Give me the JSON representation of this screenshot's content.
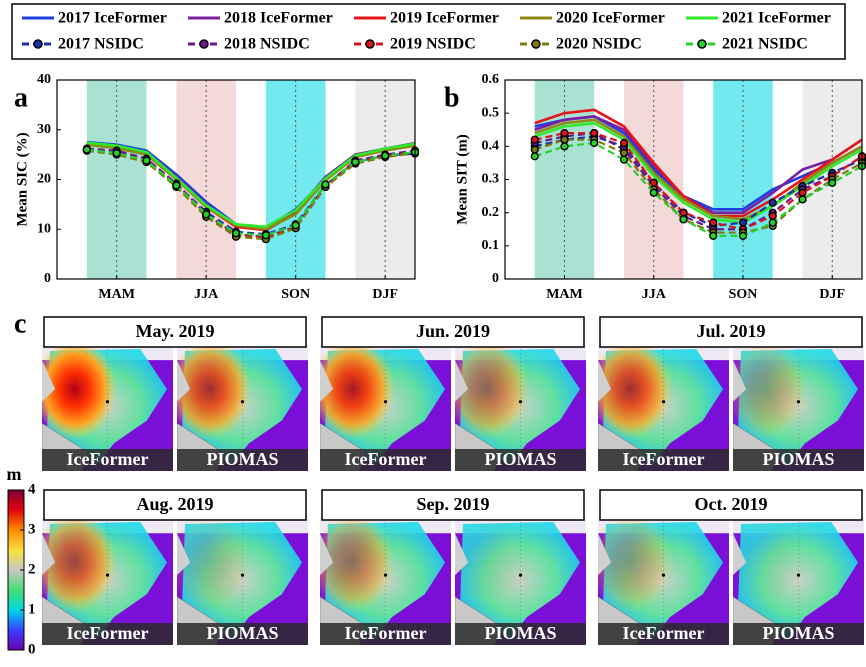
{
  "panel_labels": [
    "a",
    "b",
    "c"
  ],
  "legend": [
    {
      "name": "2017 IceFormer",
      "color": "#1f3fe0",
      "dashed": false
    },
    {
      "name": "2018 IceFormer",
      "color": "#7a1fa0",
      "dashed": false
    },
    {
      "name": "2019 IceFormer",
      "color": "#e8141c",
      "dashed": false
    },
    {
      "name": "2020 IceFormer",
      "color": "#8c8a10",
      "dashed": false
    },
    {
      "name": "2021 IceFormer",
      "color": "#2ee82e",
      "dashed": false
    },
    {
      "name": "2017 NSIDC",
      "color": "#1a2fb0",
      "dashed": true
    },
    {
      "name": "2018 NSIDC",
      "color": "#6a1a8c",
      "dashed": true
    },
    {
      "name": "2019 NSIDC",
      "color": "#d8141c",
      "dashed": true
    },
    {
      "name": "2020 NSIDC",
      "color": "#7c7a10",
      "dashed": true
    },
    {
      "name": "2021 NSIDC",
      "color": "#28d028",
      "dashed": true
    }
  ],
  "chart_data": [
    {
      "type": "line",
      "ylabel": "Mean SIC (%)",
      "x": [
        1,
        2,
        3,
        4,
        5,
        6,
        7,
        8,
        9,
        10,
        11,
        12
      ],
      "xlim": [
        0,
        12
      ],
      "xticks": [
        {
          "value": 2,
          "label": "MAM"
        },
        {
          "value": 5,
          "label": "JJA"
        },
        {
          "value": 8,
          "label": "SON"
        },
        {
          "value": 11,
          "label": "DJF"
        }
      ],
      "ylim": [
        0,
        40
      ],
      "yticks": [
        0,
        10,
        20,
        30,
        40
      ],
      "grid": "x",
      "series": [
        {
          "values": [
            27.5,
            27,
            25.8,
            21,
            15.5,
            11,
            10.2,
            14,
            20,
            24.5,
            26,
            27
          ]
        },
        {
          "values": [
            27.3,
            26.8,
            25.5,
            20.5,
            15,
            10.5,
            10,
            13.5,
            20.5,
            25,
            26.2,
            27.3
          ]
        },
        {
          "values": [
            27.2,
            26.5,
            25.2,
            20.2,
            14.5,
            10.5,
            9.8,
            13.2,
            20,
            24.8,
            26,
            27
          ]
        },
        {
          "values": [
            27,
            26.3,
            25,
            20,
            14.5,
            10.8,
            10,
            13,
            19.8,
            24.5,
            25.8,
            26.8
          ]
        },
        {
          "values": [
            27.4,
            26.8,
            25.5,
            20.3,
            14.8,
            11,
            10.5,
            13.8,
            20.2,
            24.8,
            26.2,
            27.2
          ]
        },
        {
          "values": [
            26,
            25.5,
            24,
            19,
            13.5,
            9.5,
            9,
            11,
            19,
            23.5,
            24.8,
            25.2
          ]
        },
        {
          "values": [
            26.2,
            25.8,
            24.2,
            19.2,
            13,
            9,
            8.5,
            10.5,
            18.8,
            23.8,
            25,
            25.8
          ]
        },
        {
          "values": [
            25.8,
            25.2,
            23.8,
            18.8,
            12.8,
            8.8,
            8.2,
            10.3,
            18.5,
            23.5,
            24.6,
            25.5
          ]
        },
        {
          "values": [
            25.8,
            25,
            23.5,
            18.5,
            12.5,
            8.5,
            8,
            10.2,
            18.5,
            23.2,
            24.5,
            25.3
          ]
        },
        {
          "values": [
            26,
            25.3,
            23.8,
            18.8,
            13,
            9.2,
            8.8,
            10.8,
            19,
            23.5,
            24.8,
            25.5
          ]
        }
      ]
    },
    {
      "type": "line",
      "ylabel": "Mean SIT (m)",
      "x": [
        1,
        2,
        3,
        4,
        5,
        6,
        7,
        8,
        9,
        10,
        11,
        12
      ],
      "xlim": [
        0,
        12
      ],
      "xticks": [
        {
          "value": 2,
          "label": "MAM"
        },
        {
          "value": 5,
          "label": "JJA"
        },
        {
          "value": 8,
          "label": "SON"
        },
        {
          "value": 11,
          "label": "DJF"
        }
      ],
      "ylim": [
        0,
        0.6
      ],
      "yticks": [
        0,
        0.1,
        0.2,
        0.3,
        0.4,
        0.5,
        0.6
      ],
      "grid": "x",
      "series": [
        {
          "values": [
            0.46,
            0.48,
            0.49,
            0.44,
            0.33,
            0.25,
            0.21,
            0.21,
            0.27,
            0.31,
            0.35,
            0.4
          ]
        },
        {
          "values": [
            0.45,
            0.48,
            0.49,
            0.45,
            0.34,
            0.25,
            0.2,
            0.2,
            0.26,
            0.33,
            0.36,
            0.42
          ]
        },
        {
          "values": [
            0.47,
            0.5,
            0.51,
            0.46,
            0.35,
            0.25,
            0.19,
            0.19,
            0.24,
            0.3,
            0.36,
            0.42
          ]
        },
        {
          "values": [
            0.44,
            0.47,
            0.48,
            0.43,
            0.32,
            0.24,
            0.19,
            0.18,
            0.22,
            0.29,
            0.35,
            0.4
          ]
        },
        {
          "values": [
            0.43,
            0.46,
            0.47,
            0.42,
            0.31,
            0.23,
            0.18,
            0.17,
            0.22,
            0.28,
            0.34,
            0.39
          ]
        },
        {
          "values": [
            0.4,
            0.42,
            0.43,
            0.4,
            0.29,
            0.2,
            0.16,
            0.17,
            0.23,
            0.28,
            0.32,
            0.36
          ]
        },
        {
          "values": [
            0.41,
            0.43,
            0.44,
            0.39,
            0.28,
            0.19,
            0.15,
            0.15,
            0.2,
            0.27,
            0.31,
            0.37
          ]
        },
        {
          "values": [
            0.42,
            0.44,
            0.44,
            0.41,
            0.29,
            0.2,
            0.17,
            0.15,
            0.19,
            0.26,
            0.31,
            0.37
          ]
        },
        {
          "values": [
            0.39,
            0.42,
            0.42,
            0.38,
            0.27,
            0.18,
            0.14,
            0.14,
            0.16,
            0.24,
            0.3,
            0.35
          ]
        },
        {
          "values": [
            0.37,
            0.4,
            0.41,
            0.36,
            0.26,
            0.18,
            0.13,
            0.13,
            0.17,
            0.24,
            0.29,
            0.34
          ]
        }
      ]
    }
  ],
  "maps": {
    "colorbar": {
      "label": "m",
      "lim": [
        0,
        4
      ],
      "ticks": [
        0,
        1,
        2,
        3,
        4
      ]
    },
    "panels": [
      {
        "title": "May. 2019",
        "left": "IceFormer",
        "right": "PIOMAS"
      },
      {
        "title": "Jun. 2019",
        "left": "IceFormer",
        "right": "PIOMAS"
      },
      {
        "title": "Jul. 2019",
        "left": "IceFormer",
        "right": "PIOMAS"
      },
      {
        "title": "Aug. 2019",
        "left": "IceFormer",
        "right": "PIOMAS"
      },
      {
        "title": "Sep. 2019",
        "left": "IceFormer",
        "right": "PIOMAS"
      },
      {
        "title": "Oct. 2019",
        "left": "IceFormer",
        "right": "PIOMAS"
      }
    ]
  }
}
